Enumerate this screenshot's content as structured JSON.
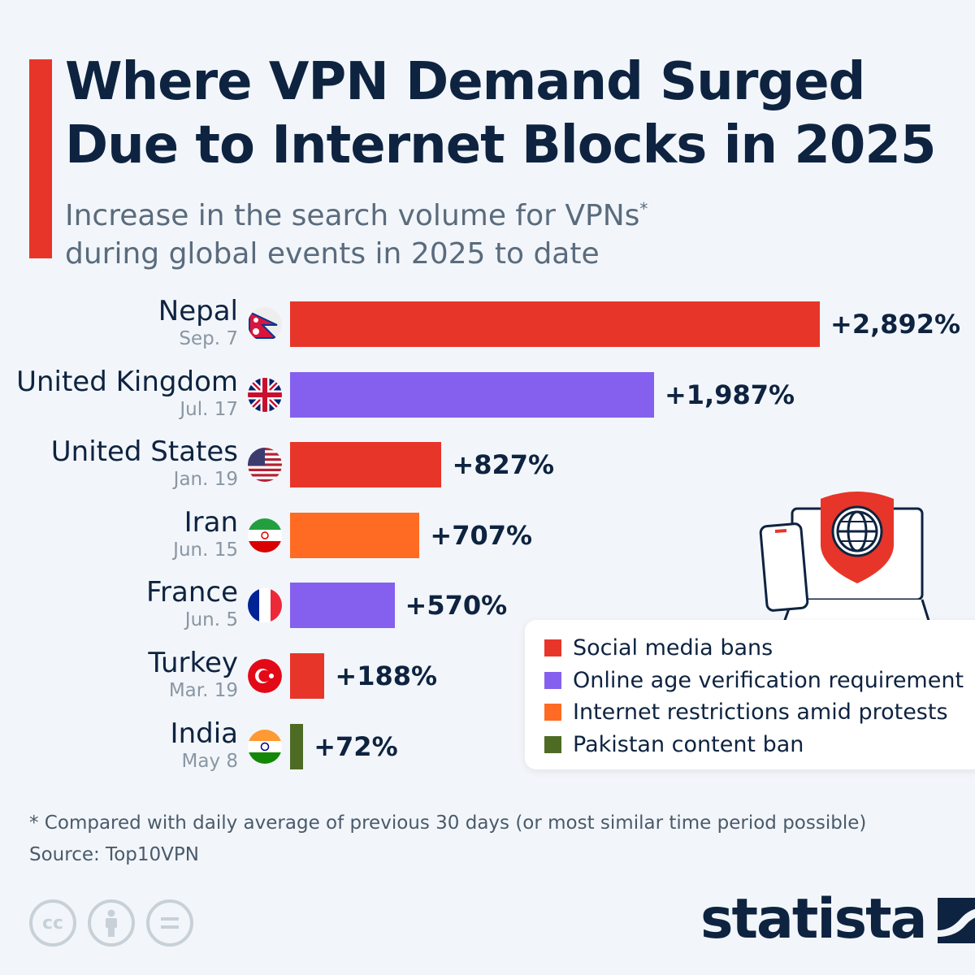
{
  "header": {
    "title": "Where VPN Demand Surged Due to Internet Blocks in 2025",
    "subtitle_line1": "Increase in the search volume for VPNs",
    "subtitle_mark": "*",
    "subtitle_line2": "during global events in 2025 to date",
    "accent_color": "#E8352A"
  },
  "chart_data": {
    "type": "bar",
    "orientation": "horizontal",
    "title": "Where VPN Demand Surged Due to Internet Blocks in 2025",
    "subtitle": "Increase in the search volume for VPNs* during global events in 2025 to date",
    "unit": "%",
    "xlim": [
      0,
      2892
    ],
    "grid": false,
    "legend_position": "right",
    "categories": [
      "Nepal",
      "United Kingdom",
      "United States",
      "Iran",
      "France",
      "Turkey",
      "India"
    ],
    "rows": [
      {
        "country": "Nepal",
        "date": "Sep. 7",
        "value": 2892,
        "label": "+2,892%",
        "category": "Social media bans",
        "flag": "nepal-flag-icon"
      },
      {
        "country": "United Kingdom",
        "date": "Jul. 17",
        "value": 1987,
        "label": "+1,987%",
        "category": "Online age verification requirement",
        "flag": "uk-flag-icon"
      },
      {
        "country": "United States",
        "date": "Jan. 19",
        "value": 827,
        "label": "+827%",
        "category": "Social media bans",
        "flag": "us-flag-icon"
      },
      {
        "country": "Iran",
        "date": "Jun. 15",
        "value": 707,
        "label": "+707%",
        "category": "Internet restrictions amid protests",
        "flag": "iran-flag-icon"
      },
      {
        "country": "France",
        "date": "Jun. 5",
        "value": 570,
        "label": "+570%",
        "category": "Online age verification requirement",
        "flag": "france-flag-icon"
      },
      {
        "country": "Turkey",
        "date": "Mar. 19",
        "value": 188,
        "label": "+188%",
        "category": "Social media bans",
        "flag": "turkey-flag-icon"
      },
      {
        "country": "India",
        "date": "May 8",
        "value": 72,
        "label": "+72%",
        "category": "Pakistan content ban",
        "flag": "india-flag-icon"
      }
    ],
    "legend": [
      {
        "label": "Social media bans",
        "color": "#E8352A"
      },
      {
        "label": "Online age verification requirement",
        "color": "#8560EE"
      },
      {
        "label": "Internet restrictions amid protests",
        "color": "#FF6B22"
      },
      {
        "label": "Pakistan content ban",
        "color": "#4E6B24"
      }
    ]
  },
  "footer": {
    "footnote": "* Compared with daily average of previous 30 days (or most similar time period possible)",
    "source": "Source: Top10VPN",
    "brand": "statista",
    "license_icons": [
      "cc-icon",
      "attribution-icon",
      "no-derivatives-icon"
    ]
  }
}
